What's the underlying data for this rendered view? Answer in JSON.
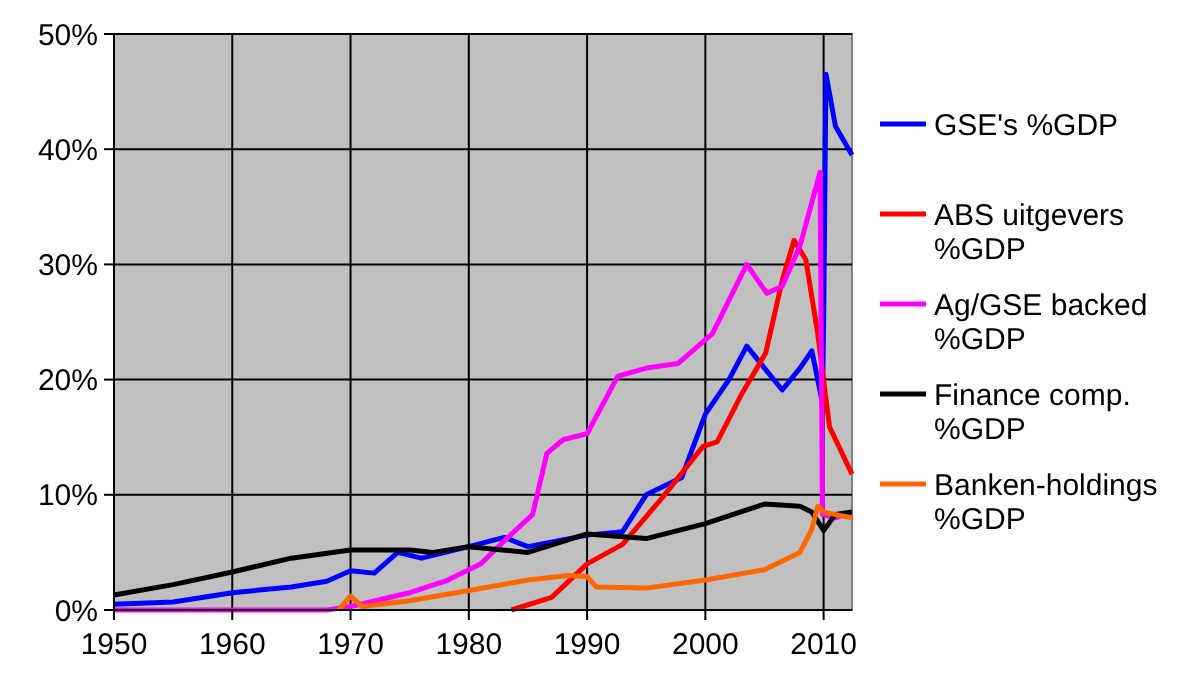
{
  "chart_data": {
    "type": "line",
    "xlim": [
      1950,
      2012.4
    ],
    "xticks": [
      1950,
      1960,
      1970,
      1980,
      1990,
      2000,
      2010
    ],
    "ylim": [
      0,
      50
    ],
    "yticks": [
      {
        "value": 0,
        "label": "0%"
      },
      {
        "value": 10,
        "label": "10%"
      },
      {
        "value": 20,
        "label": "20%"
      },
      {
        "value": 30,
        "label": "30%"
      },
      {
        "value": 40,
        "label": "40%"
      },
      {
        "value": 50,
        "label": "50%"
      }
    ],
    "grid": true,
    "legend": "right",
    "marker": "none",
    "line_style": "solid",
    "series": [
      {
        "name": "GSE's  %GDP",
        "color": "#0000ff",
        "x": [
          1950,
          1955,
          1960,
          1965,
          1968,
          1970,
          1972,
          1974,
          1976,
          1980,
          1983,
          1985,
          1990,
          1993,
          1995,
          1998,
          2000,
          2002,
          2003.5,
          2005,
          2006.5,
          2008,
          2009,
          2009.9,
          2010,
          2010.2,
          2011,
          2012.4
        ],
        "values": [
          0.5,
          0.7,
          1.5,
          2.0,
          2.5,
          3.4,
          3.2,
          5.0,
          4.5,
          5.5,
          6.3,
          5.5,
          6.5,
          6.8,
          10,
          11.5,
          17,
          20,
          22.9,
          21,
          19.1,
          21,
          22.5,
          18,
          25,
          46.5,
          42,
          39.5
        ]
      },
      {
        "name": "ABS uitgevers %GDP",
        "color": "#ff0000",
        "x": [
          1983.6,
          1987,
          1990,
          1993,
          1996.4,
          1999.8,
          2001,
          2003.1,
          2005.1,
          2006.5,
          2007.5,
          2008.5,
          2009.5,
          2010.5,
          2012.4
        ],
        "values": [
          0,
          1.1,
          4,
          5.7,
          9.8,
          14.2,
          14.6,
          18.8,
          22.3,
          28.6,
          32.1,
          30.4,
          24,
          15.9,
          11.8
        ]
      },
      {
        "name": "Ag/GSE backed %GDP",
        "color": "#ff00ff",
        "x": [
          1950,
          1968,
          1970,
          1975,
          1978,
          1980,
          1981,
          1983,
          1985.4,
          1986.6,
          1988,
          1990,
          1992.6,
          1995,
          1997.7,
          2000.6,
          2003.5,
          2005.2,
          2006.5,
          2008,
          2009.7,
          2009.9,
          2011,
          2012.4
        ],
        "values": [
          0,
          0,
          0.3,
          1.5,
          2.5,
          3.5,
          4.0,
          6,
          8.3,
          13.6,
          14.8,
          15.3,
          20.3,
          21,
          21.4,
          24,
          30,
          27.5,
          28.1,
          31.6,
          38,
          8.3,
          8.0,
          8.5
        ]
      },
      {
        "name": "Finance comp. %GDP",
        "color": "#000000",
        "x": [
          1950,
          1955,
          1960,
          1965,
          1970,
          1975,
          1977,
          1980,
          1985,
          1990,
          1995,
          2000,
          2005,
          2008,
          2009,
          2010,
          2011,
          2012.4
        ],
        "values": [
          1.3,
          2.2,
          3.3,
          4.5,
          5.2,
          5.2,
          5.0,
          5.5,
          5.0,
          6.6,
          6.2,
          7.5,
          9.2,
          9.0,
          8.5,
          6.9,
          8.3,
          8.5
        ]
      },
      {
        "name": "Banken-holdings %GDP",
        "color": "#ff6600",
        "x": [
          1969,
          1970,
          1971,
          1975,
          1980,
          1985,
          1988.4,
          1990,
          1990.8,
          1995,
          2000,
          2005,
          2008,
          2009,
          2009.5,
          2010,
          2012.4
        ],
        "values": [
          0,
          1.2,
          0.3,
          0.8,
          1.7,
          2.6,
          3.0,
          2.9,
          2.0,
          1.9,
          2.6,
          3.5,
          5.0,
          7.0,
          9.0,
          8.5,
          8.0
        ]
      }
    ]
  }
}
